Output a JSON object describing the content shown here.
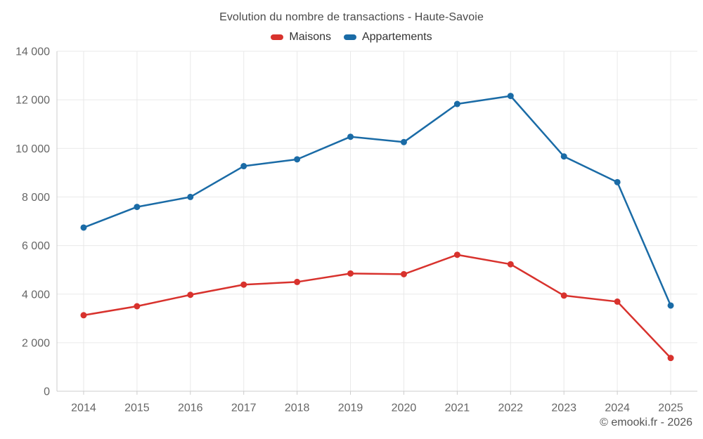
{
  "title": "Evolution du nombre de transactions - Haute-Savoie",
  "footer": "© emooki.fr - 2026",
  "legend": {
    "items": [
      {
        "label": "Maisons",
        "color": "#d8322d"
      },
      {
        "label": "Appartements",
        "color": "#1a6ba6"
      }
    ]
  },
  "colors": {
    "maisons": "#d8322d",
    "appartements": "#1a6ba6",
    "grid_line": "#e9e9e9",
    "axis_line": "#cccccc",
    "axis_label": "#666666",
    "title_text": "#4a4a4a",
    "legend_text": "#333333",
    "footer_text": "#555555"
  },
  "chart_data": {
    "type": "line",
    "title": "Evolution du nombre de transactions - Haute-Savoie",
    "categories": [
      "2014",
      "2015",
      "2016",
      "2017",
      "2018",
      "2019",
      "2020",
      "2021",
      "2022",
      "2023",
      "2024",
      "2025"
    ],
    "series": [
      {
        "name": "Maisons",
        "color": "#d8322d",
        "values": [
          3130,
          3500,
          3970,
          4390,
          4500,
          4850,
          4820,
          5620,
          5230,
          3940,
          3690,
          1370
        ]
      },
      {
        "name": "Appartements",
        "color": "#1a6ba6",
        "values": [
          6740,
          7590,
          8000,
          9270,
          9550,
          10480,
          10260,
          11830,
          12160,
          9670,
          8610,
          3530
        ]
      }
    ],
    "xlabel": "",
    "ylabel": "",
    "ylim": [
      0,
      14000
    ],
    "ytick_values": [
      0,
      2000,
      4000,
      6000,
      8000,
      10000,
      12000,
      14000
    ],
    "ytick_labels": [
      "0",
      "2 000",
      "4 000",
      "6 000",
      "8 000",
      "10 000",
      "12 000",
      "14 000"
    ],
    "grid": true,
    "legend_position": "top"
  }
}
